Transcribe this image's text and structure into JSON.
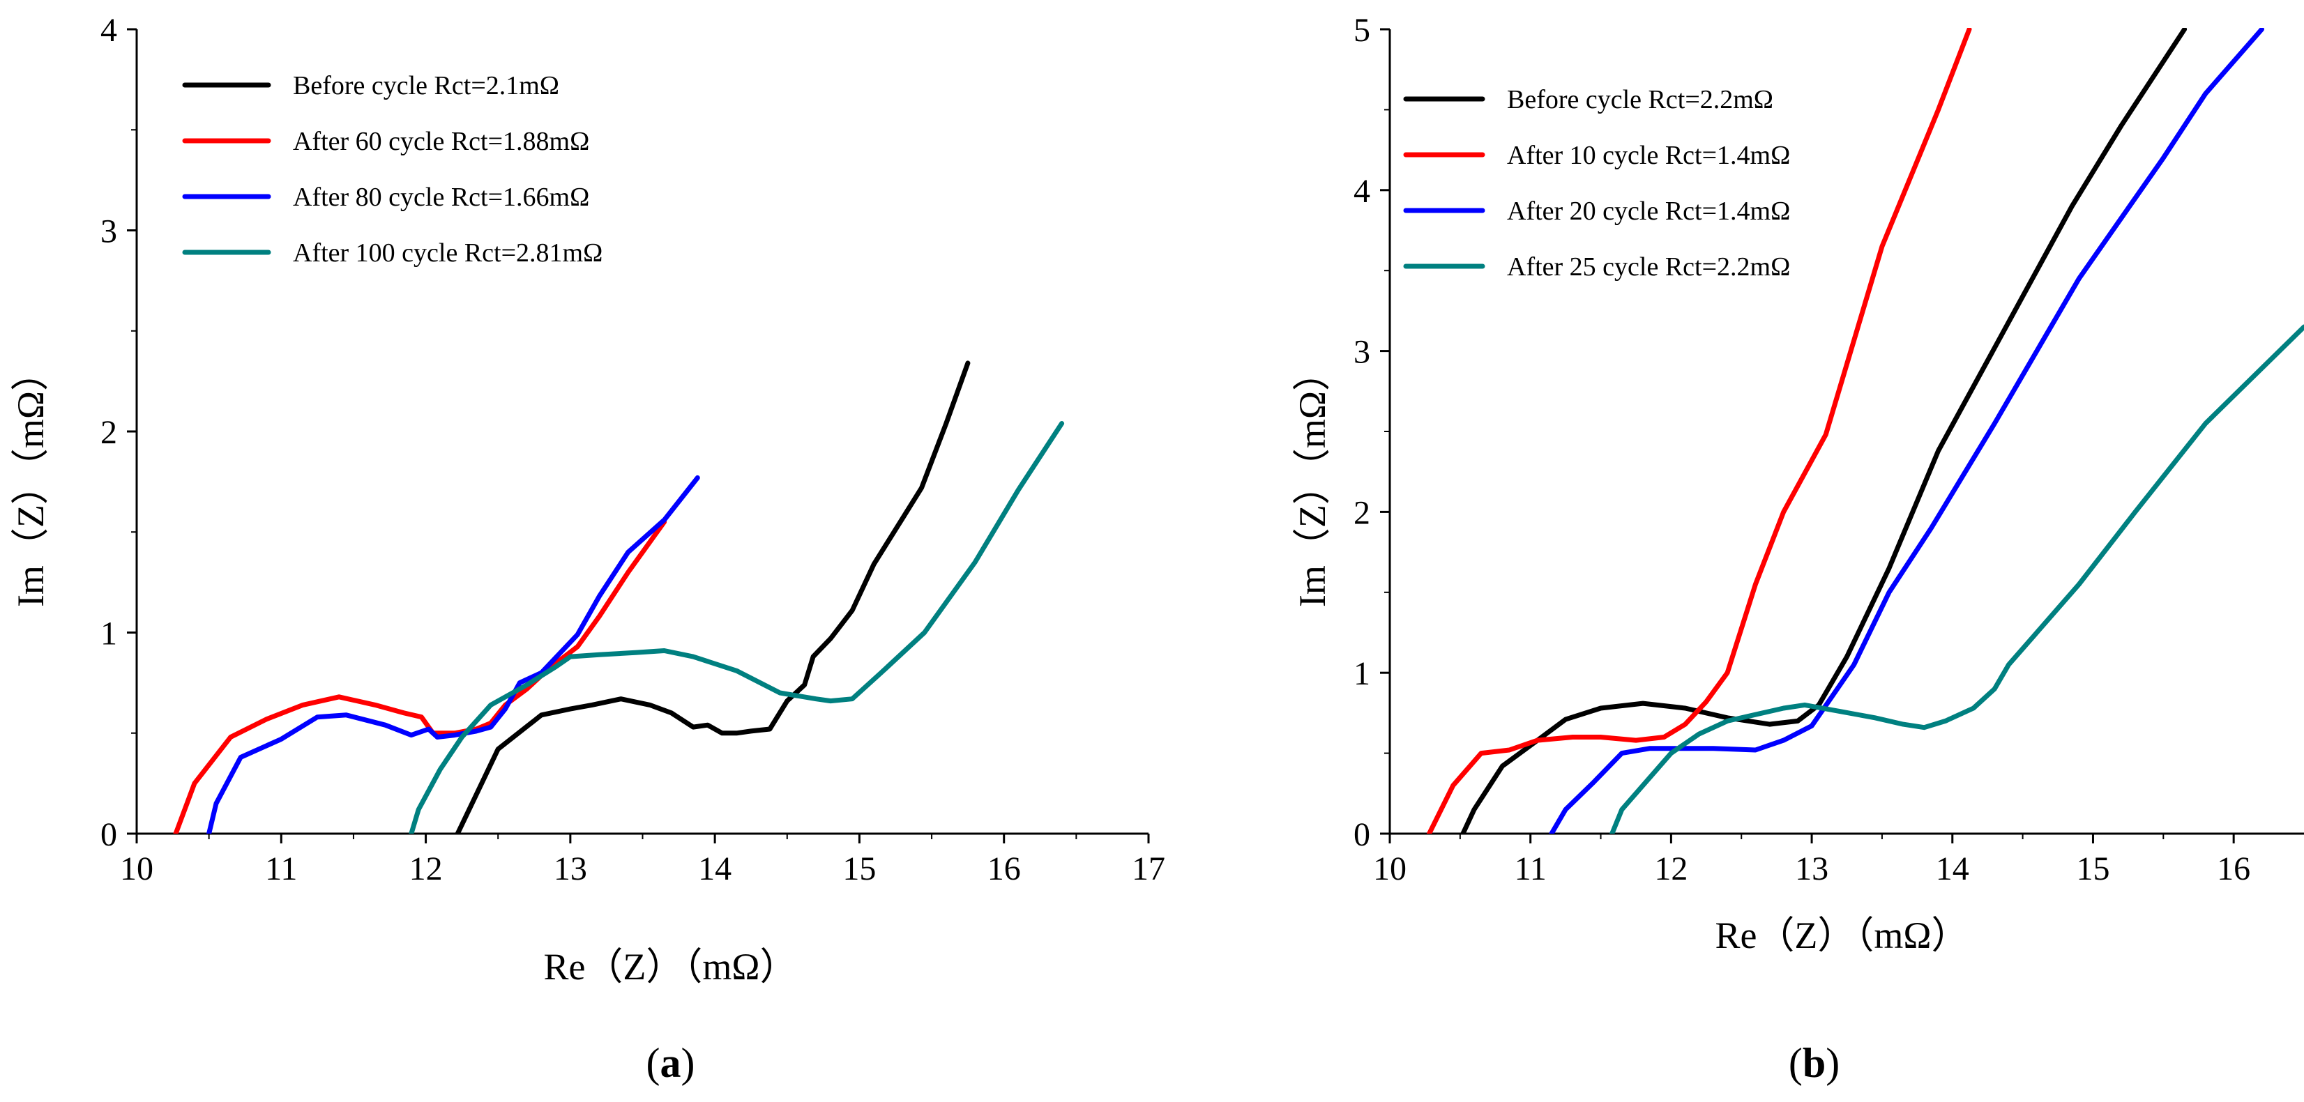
{
  "chart_data": [
    {
      "type": "line",
      "panel_label": "a",
      "xlabel": "Re（Z）（mΩ）",
      "ylabel": "Im（Z）（mΩ）",
      "xlim": [
        10,
        17
      ],
      "ylim": [
        0,
        4
      ],
      "xticks": [
        10,
        11,
        12,
        13,
        14,
        15,
        16,
        17
      ],
      "yticks": [
        0,
        1,
        2,
        3,
        4
      ],
      "legend_position": "top-left",
      "series": [
        {
          "name": "Before cycle  Rct=2.1mΩ",
          "color": "#000000",
          "x": [
            12.22,
            12.3,
            12.5,
            12.8,
            13.0,
            13.15,
            13.35,
            13.55,
            13.7,
            13.85,
            13.95,
            14.05,
            14.15,
            14.25,
            14.38,
            14.5,
            14.62,
            14.68,
            14.8,
            14.95,
            15.1,
            15.3,
            15.43,
            15.6,
            15.75
          ],
          "y": [
            0.0,
            0.12,
            0.42,
            0.59,
            0.62,
            0.64,
            0.67,
            0.64,
            0.6,
            0.53,
            0.54,
            0.5,
            0.5,
            0.51,
            0.52,
            0.66,
            0.74,
            0.88,
            0.97,
            1.11,
            1.34,
            1.57,
            1.72,
            2.04,
            2.34
          ]
        },
        {
          "name": "After 60 cycle  Rct=1.88mΩ",
          "color": "#ff0000",
          "x": [
            10.27,
            10.4,
            10.65,
            10.9,
            11.15,
            11.4,
            11.65,
            11.85,
            11.97,
            12.05,
            12.2,
            12.35,
            12.45,
            12.55,
            12.7,
            12.85,
            13.05,
            13.2,
            13.4,
            13.65
          ],
          "y": [
            0.0,
            0.25,
            0.48,
            0.57,
            0.64,
            0.68,
            0.64,
            0.6,
            0.58,
            0.5,
            0.5,
            0.52,
            0.55,
            0.64,
            0.72,
            0.82,
            0.93,
            1.08,
            1.3,
            1.55
          ]
        },
        {
          "name": "After 80 cycle  Rct=1.66mΩ",
          "color": "#0000ff",
          "x": [
            10.5,
            10.55,
            10.72,
            11.0,
            11.25,
            11.45,
            11.72,
            11.9,
            12.02,
            12.08,
            12.2,
            12.35,
            12.45,
            12.55,
            12.65,
            12.8,
            13.05,
            13.2,
            13.4,
            13.65,
            13.88
          ],
          "y": [
            0.0,
            0.15,
            0.38,
            0.47,
            0.58,
            0.59,
            0.54,
            0.49,
            0.52,
            0.48,
            0.49,
            0.51,
            0.53,
            0.62,
            0.75,
            0.8,
            0.99,
            1.18,
            1.4,
            1.56,
            1.77
          ]
        },
        {
          "name": "After 100 cycle  Rct=2.81mΩ",
          "color": "#008080",
          "x": [
            11.9,
            11.95,
            12.1,
            12.25,
            12.45,
            12.7,
            12.9,
            13.0,
            13.2,
            13.45,
            13.65,
            13.85,
            14.15,
            14.45,
            14.7,
            14.8,
            14.95,
            15.15,
            15.45,
            15.8,
            16.1,
            16.4
          ],
          "y": [
            0.0,
            0.12,
            0.32,
            0.48,
            0.64,
            0.74,
            0.83,
            0.88,
            0.89,
            0.9,
            0.91,
            0.88,
            0.81,
            0.7,
            0.67,
            0.66,
            0.67,
            0.8,
            1.0,
            1.35,
            1.71,
            2.04
          ]
        }
      ]
    },
    {
      "type": "line",
      "panel_label": "b",
      "xlabel": "Re（Z）（mΩ）",
      "ylabel": "Im（Z）（mΩ）",
      "xlim": [
        10,
        16.5
      ],
      "ylim": [
        0,
        5
      ],
      "xticks": [
        10,
        11,
        12,
        13,
        14,
        15,
        16
      ],
      "yticks": [
        0,
        1,
        2,
        3,
        4,
        5
      ],
      "legend_position": "top-left",
      "series": [
        {
          "name": "Before cycle  Rct=2.2mΩ",
          "color": "#000000",
          "x": [
            10.52,
            10.6,
            10.8,
            11.05,
            11.25,
            11.5,
            11.8,
            12.1,
            12.4,
            12.7,
            12.9,
            13.05,
            13.25,
            13.55,
            13.9,
            14.3,
            14.85,
            15.2,
            15.65
          ],
          "y": [
            0.0,
            0.15,
            0.42,
            0.58,
            0.71,
            0.78,
            0.81,
            0.78,
            0.72,
            0.68,
            0.7,
            0.8,
            1.1,
            1.65,
            2.38,
            3.02,
            3.9,
            4.4,
            5.0
          ]
        },
        {
          "name": "After 10 cycle  Rct=1.4mΩ",
          "color": "#ff0000",
          "x": [
            10.28,
            10.45,
            10.65,
            10.85,
            11.05,
            11.3,
            11.5,
            11.75,
            11.95,
            12.1,
            12.25,
            12.4,
            12.6,
            12.8,
            13.1,
            13.5,
            13.9,
            14.12
          ],
          "y": [
            0.0,
            0.3,
            0.5,
            0.52,
            0.58,
            0.6,
            0.6,
            0.58,
            0.6,
            0.68,
            0.82,
            1.0,
            1.55,
            2.0,
            2.48,
            3.65,
            4.5,
            5.0
          ]
        },
        {
          "name": "After 20 cycle  Rct=1.4mΩ",
          "color": "#0000ff",
          "x": [
            11.15,
            11.25,
            11.45,
            11.65,
            11.85,
            12.05,
            12.3,
            12.6,
            12.8,
            13.0,
            13.3,
            13.55,
            13.85,
            14.3,
            14.9,
            15.5,
            15.8,
            16.2
          ],
          "y": [
            0.0,
            0.15,
            0.32,
            0.5,
            0.53,
            0.53,
            0.53,
            0.52,
            0.58,
            0.67,
            1.05,
            1.5,
            1.9,
            2.55,
            3.45,
            4.2,
            4.6,
            5.0
          ]
        },
        {
          "name": "After 25 cycle  Rct=2.2mΩ",
          "color": "#008080",
          "x": [
            11.58,
            11.65,
            11.8,
            12.0,
            12.2,
            12.4,
            12.6,
            12.8,
            12.95,
            13.2,
            13.45,
            13.65,
            13.8,
            13.95,
            14.15,
            14.3,
            14.4,
            14.6,
            14.9,
            15.3,
            15.8,
            16.5
          ],
          "y": [
            0.0,
            0.15,
            0.3,
            0.5,
            0.62,
            0.7,
            0.74,
            0.78,
            0.8,
            0.76,
            0.72,
            0.68,
            0.66,
            0.7,
            0.78,
            0.9,
            1.05,
            1.25,
            1.55,
            2.0,
            2.55,
            3.15
          ]
        }
      ]
    }
  ]
}
